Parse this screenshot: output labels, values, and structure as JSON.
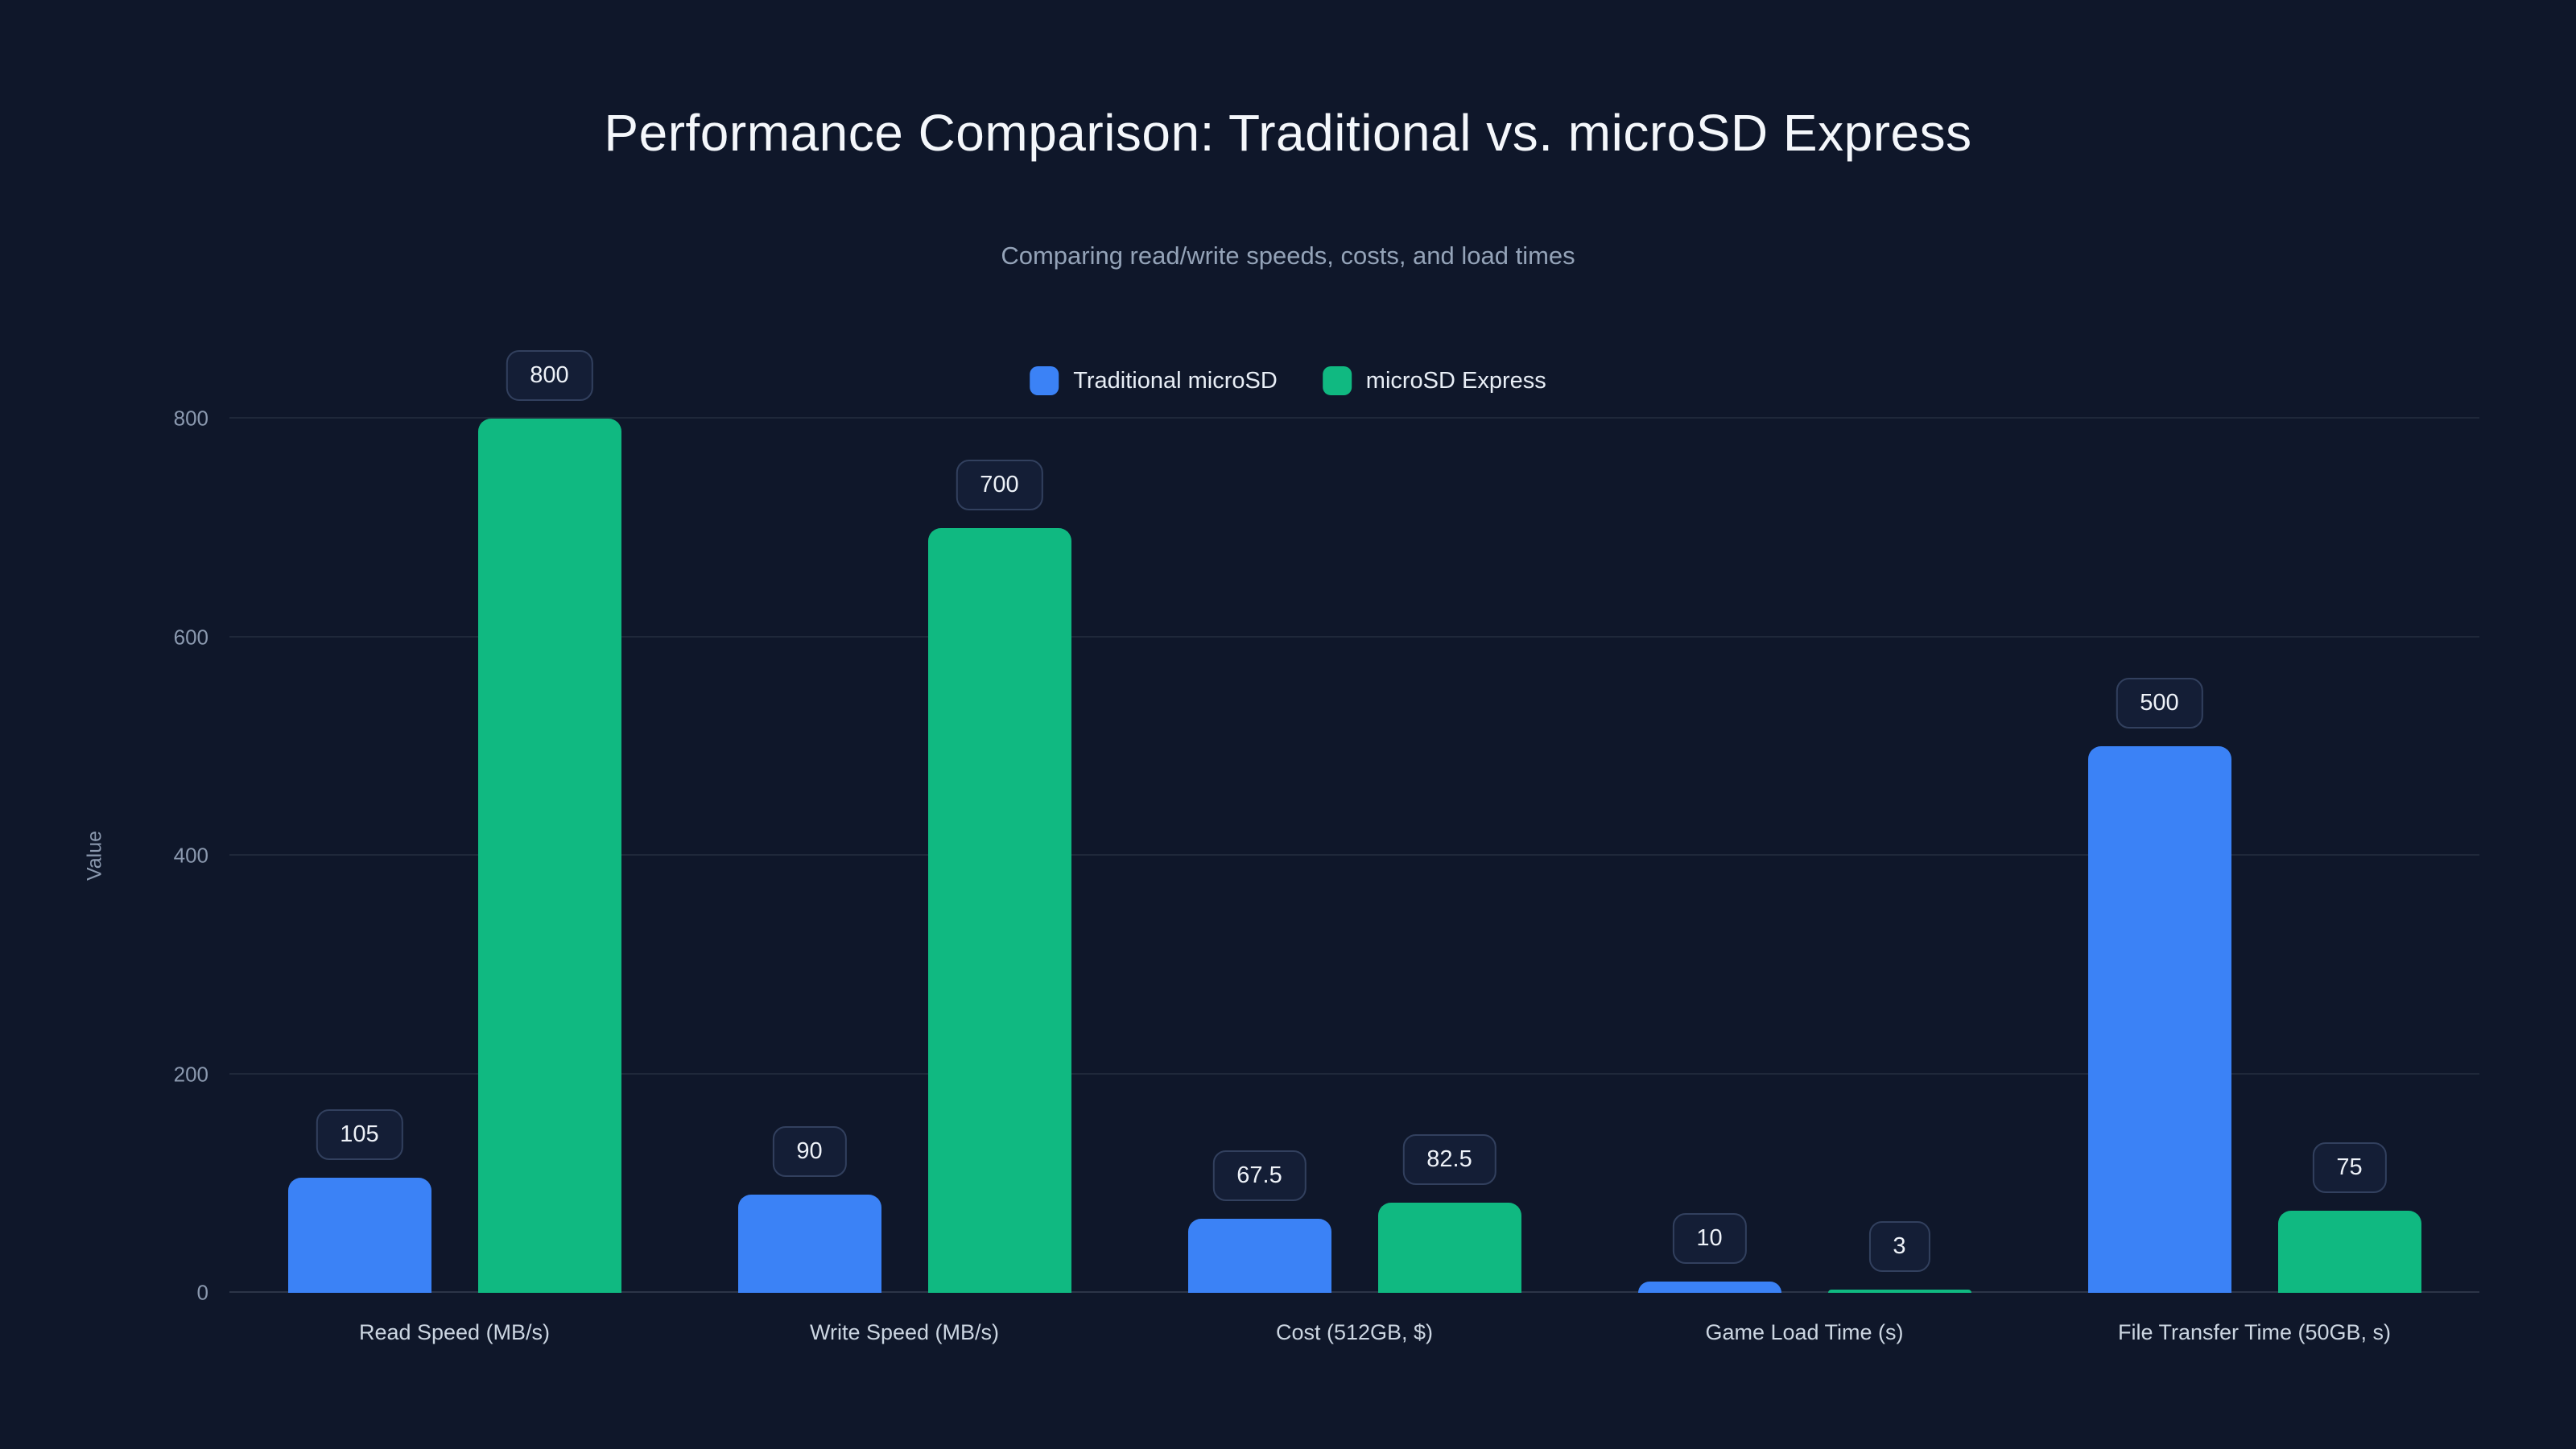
{
  "title": "Performance Comparison: Traditional vs. microSD Express",
  "subtitle": "Comparing read/write speeds, costs, and load times",
  "colors": {
    "background": "#0f172a",
    "traditional": "#3b82f6",
    "express": "#10b981",
    "grid": "rgba(148,163,184,0.12)",
    "badge_border": "#32405e"
  },
  "legend": {
    "items": [
      {
        "label": "Traditional microSD",
        "color": "#3b82f6"
      },
      {
        "label": "microSD Express",
        "color": "#10b981"
      }
    ]
  },
  "chart_data": {
    "type": "bar",
    "title": "Performance Comparison: Traditional vs. microSD Express",
    "subtitle": "Comparing read/write speeds, costs, and load times",
    "categories": [
      "Read Speed (MB/s)",
      "Write Speed (MB/s)",
      "Cost (512GB, $)",
      "Game Load Time (s)",
      "File Transfer Time (50GB, s)"
    ],
    "series": [
      {
        "name": "Traditional microSD",
        "color": "#3b82f6",
        "values": [
          105,
          90,
          67.5,
          10,
          500
        ]
      },
      {
        "name": "microSD Express",
        "color": "#10b981",
        "values": [
          800,
          700,
          82.5,
          3,
          75
        ]
      }
    ],
    "xlabel": "",
    "ylabel": "Value",
    "yticks": [
      0,
      200,
      400,
      600,
      800
    ],
    "ylim": [
      0,
      800
    ],
    "grid": true,
    "legend_position": "top",
    "value_labels": true
  }
}
